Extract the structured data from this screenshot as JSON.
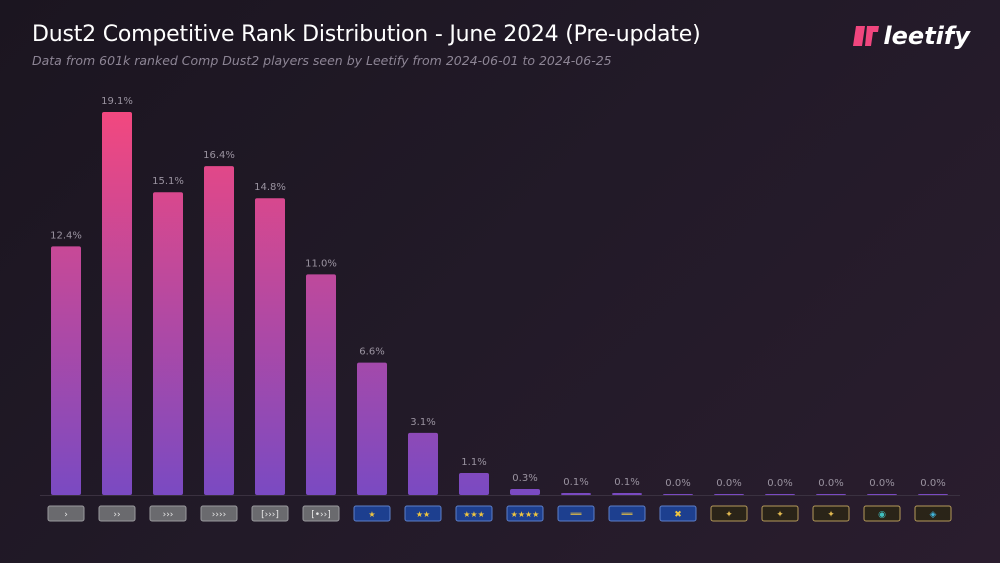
{
  "header": {
    "title": "Dust2 Competitive Rank Distribution - June 2024 (Pre-update)",
    "subtitle": "Data from 601k ranked Comp Dust2 players seen by Leetify from 2024-06-01 to 2024-06-25",
    "logo_text": "leetify"
  },
  "colors": {
    "bar_top": "#f2487f",
    "bar_bottom": "#7a4ac2",
    "logo_accent": "#f0467e",
    "silver_badge": "#6a6a6e",
    "gold_nova_badge": "#1d3f8f",
    "elite_badge": "#2a2418"
  },
  "chart_data": {
    "type": "bar",
    "title": "Dust2 Competitive Rank Distribution - June 2024 (Pre-update)",
    "categories": [
      "Silver I",
      "Silver II",
      "Silver III",
      "Silver IV",
      "Silver Elite",
      "Silver Elite Master",
      "Gold Nova I",
      "Gold Nova II",
      "Gold Nova III",
      "Gold Nova Master",
      "Master Guardian I",
      "Master Guardian II",
      "Master Guardian Elite",
      "Distinguished Master Guardian",
      "Legendary Eagle",
      "Legendary Eagle Master",
      "Supreme Master First Class",
      "The Global Elite"
    ],
    "category_icons": [
      "silver",
      "silver",
      "silver",
      "silver",
      "silver",
      "silver",
      "gold-nova",
      "gold-nova",
      "gold-nova",
      "gold-nova",
      "master-guardian",
      "master-guardian",
      "master-guardian",
      "eagle",
      "eagle",
      "eagle",
      "supreme",
      "global-elite"
    ],
    "values": [
      12.4,
      19.1,
      15.1,
      16.4,
      14.8,
      11.0,
      6.6,
      3.1,
      1.1,
      0.3,
      0.1,
      0.1,
      0.0,
      0.0,
      0.0,
      0.0,
      0.0,
      0.0
    ],
    "labels": [
      "12.4%",
      "19.1%",
      "15.1%",
      "16.4%",
      "14.8%",
      "11.0%",
      "6.6%",
      "3.1%",
      "1.1%",
      "0.3%",
      "0.1%",
      "0.1%",
      "0.0%",
      "0.0%",
      "0.0%",
      "0.0%",
      "0.0%",
      "0.0%"
    ],
    "ylim": [
      0,
      19.1
    ],
    "unit": "%",
    "grid": false,
    "xlabel": "",
    "ylabel": ""
  }
}
